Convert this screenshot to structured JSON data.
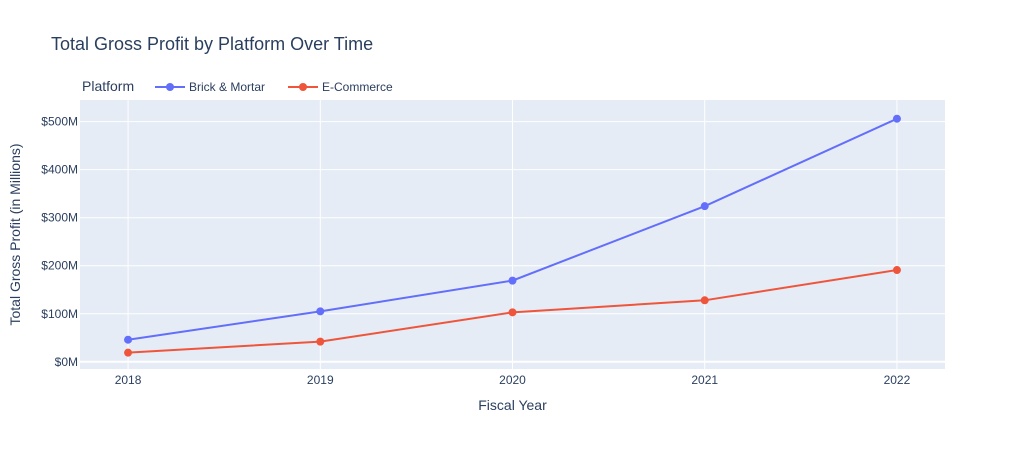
{
  "chart_data": {
    "type": "line",
    "title": "Total Gross Profit by Platform Over Time",
    "xlabel": "Fiscal Year",
    "ylabel": "Total Gross Profit (in Millions)",
    "x": [
      "2018",
      "2019",
      "2020",
      "2021",
      "2022"
    ],
    "xlim": [
      2017.75,
      2022.25
    ],
    "ylim": [
      -15,
      545
    ],
    "yticks": [
      0,
      100,
      200,
      300,
      400,
      500
    ],
    "ytick_labels": [
      "$0M",
      "$100M",
      "$200M",
      "$300M",
      "$400M",
      "$500M"
    ],
    "legend_title": "Platform",
    "legend_position": "top-left",
    "grid": true,
    "series": [
      {
        "name": "Brick & Mortar",
        "color": "#636efa",
        "values": [
          46,
          105,
          169,
          324,
          506
        ]
      },
      {
        "name": "E-Commerce",
        "color": "#ef553b",
        "values": [
          19,
          42,
          103,
          128,
          191
        ]
      }
    ]
  }
}
